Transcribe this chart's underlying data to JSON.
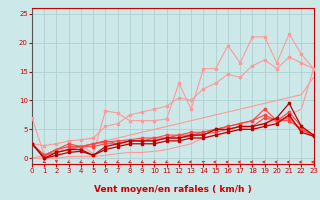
{
  "xlabel": "Vent moyen/en rafales ( km/h )",
  "xlim": [
    0,
    23
  ],
  "ylim": [
    -1,
    26
  ],
  "yticks": [
    0,
    5,
    10,
    15,
    20,
    25
  ],
  "xticks": [
    0,
    1,
    2,
    3,
    4,
    5,
    6,
    7,
    8,
    9,
    10,
    11,
    12,
    13,
    14,
    15,
    16,
    17,
    18,
    19,
    20,
    21,
    22,
    23
  ],
  "bg_color": "#cce8e8",
  "grid_color": "#aacccc",
  "x": [
    0,
    1,
    2,
    3,
    4,
    5,
    6,
    7,
    8,
    9,
    10,
    11,
    12,
    13,
    14,
    15,
    16,
    17,
    18,
    19,
    20,
    21,
    22,
    23
  ],
  "lp1": [
    7.0,
    0.5,
    1.5,
    2.0,
    2.2,
    0.8,
    8.2,
    7.8,
    6.5,
    6.5,
    6.5,
    6.8,
    13.0,
    8.5,
    15.5,
    15.5,
    19.5,
    16.5,
    21.0,
    21.0,
    16.5,
    21.5,
    18.0,
    15.5
  ],
  "lp2": [
    2.5,
    2.2,
    2.5,
    3.0,
    3.2,
    3.5,
    5.5,
    6.0,
    7.5,
    8.0,
    8.5,
    9.0,
    10.5,
    10.0,
    12.0,
    13.0,
    14.5,
    14.0,
    16.0,
    17.0,
    15.5,
    17.5,
    16.5,
    15.5
  ],
  "lp3_a": [
    0.0,
    0.0,
    0.0,
    0.3,
    0.3,
    0.3,
    0.5,
    0.8,
    1.0,
    1.0,
    1.2,
    1.5,
    2.0,
    2.5,
    3.5,
    4.0,
    4.5,
    5.0,
    5.5,
    6.0,
    6.5,
    7.5,
    8.5,
    15.5
  ],
  "lp4": [
    0.0,
    0.5,
    1.0,
    1.5,
    2.0,
    2.5,
    3.0,
    3.5,
    4.0,
    4.5,
    5.0,
    5.5,
    6.0,
    6.5,
    7.0,
    7.5,
    8.0,
    8.5,
    9.0,
    9.5,
    10.0,
    10.5,
    11.0,
    14.0
  ],
  "mr1": [
    2.5,
    0.5,
    1.5,
    2.5,
    2.0,
    2.5,
    3.0,
    2.5,
    3.0,
    3.0,
    3.5,
    3.5,
    4.0,
    4.5,
    4.5,
    5.0,
    5.5,
    6.0,
    6.5,
    8.5,
    6.5,
    8.0,
    5.5,
    4.0
  ],
  "mr2": [
    2.5,
    0.5,
    1.5,
    2.0,
    2.0,
    2.5,
    2.8,
    3.0,
    3.2,
    3.5,
    3.5,
    4.0,
    4.0,
    4.0,
    4.5,
    5.0,
    5.5,
    6.0,
    6.5,
    7.5,
    6.5,
    7.0,
    5.0,
    4.0
  ],
  "mr3": [
    2.5,
    0.5,
    1.0,
    1.5,
    2.0,
    2.0,
    2.5,
    2.5,
    3.0,
    3.0,
    3.0,
    3.5,
    3.5,
    3.8,
    4.2,
    4.5,
    5.0,
    5.5,
    5.5,
    7.0,
    6.5,
    6.5,
    5.0,
    3.8
  ],
  "dr1": [
    2.5,
    0.0,
    1.0,
    1.5,
    1.5,
    0.5,
    2.0,
    2.5,
    3.0,
    3.0,
    3.0,
    3.5,
    3.5,
    4.0,
    4.0,
    5.0,
    5.0,
    5.5,
    5.5,
    6.0,
    7.0,
    9.5,
    5.5,
    4.0
  ],
  "dr2": [
    2.5,
    0.0,
    0.5,
    1.0,
    1.2,
    0.5,
    1.5,
    2.0,
    2.5,
    2.5,
    2.5,
    3.0,
    3.0,
    3.5,
    3.5,
    4.0,
    4.5,
    5.0,
    5.0,
    5.5,
    6.0,
    7.5,
    4.5,
    3.8
  ],
  "colors": {
    "light_pink": "#FF9999",
    "medium_red": "#FF4444",
    "dark_red": "#BB0000",
    "arrow_red": "#DD2222"
  },
  "wind_dirs": [
    270,
    225,
    180,
    225,
    225,
    225,
    225,
    225,
    225,
    225,
    225,
    225,
    225,
    270,
    315,
    270,
    270,
    270,
    270,
    270,
    270,
    270,
    270,
    270
  ]
}
